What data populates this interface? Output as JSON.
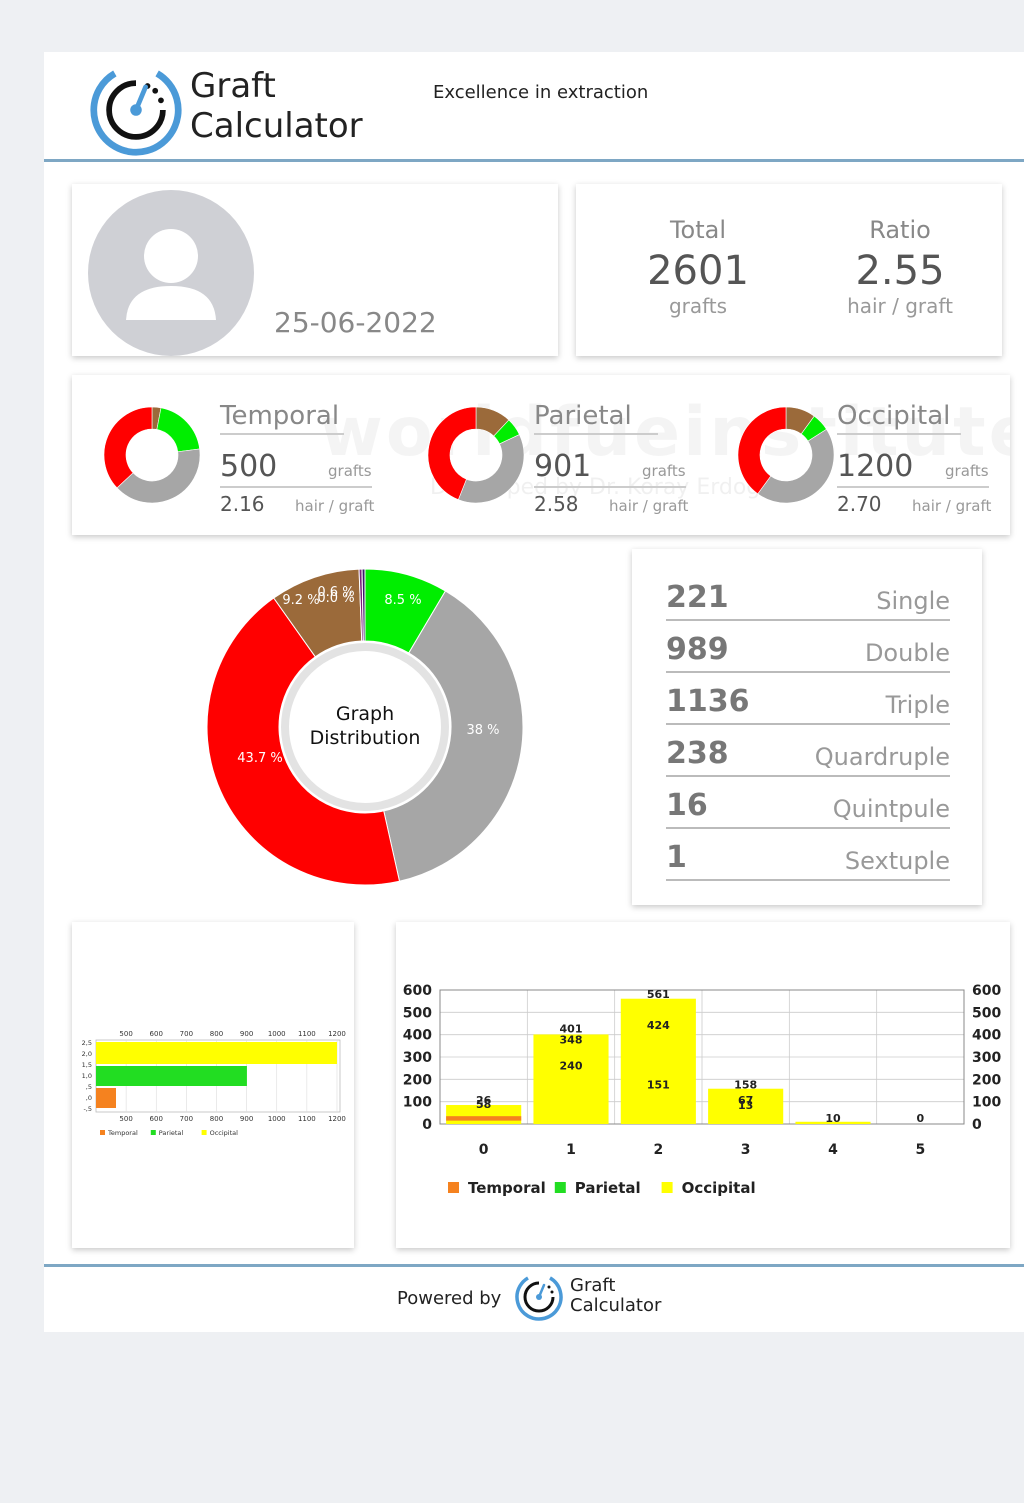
{
  "header": {
    "brand_line1": "Graft",
    "brand_line2": "Calculator",
    "tagline": "Excellence in extraction"
  },
  "watermark": {
    "text": "worldfueinstitute",
    "sub": "Developed by Dr. Koray Erdogan"
  },
  "patient": {
    "date": "25-06-2022"
  },
  "totals": {
    "total_label": "Total",
    "total_value": "2601",
    "total_unit": "grafts",
    "ratio_label": "Ratio",
    "ratio_value": "2.55",
    "ratio_unit": "hair / graft"
  },
  "regions": [
    {
      "name": "Temporal",
      "grafts": "500",
      "grafts_unit": "grafts",
      "ratio": "2.16",
      "ratio_unit": "hair / graft",
      "slices": [
        0.03,
        0.2,
        0.4,
        0.37
      ]
    },
    {
      "name": "Parietal",
      "grafts": "901",
      "grafts_unit": "grafts",
      "ratio": "2.58",
      "ratio_unit": "hair / graft",
      "slices": [
        0.12,
        0.06,
        0.38,
        0.44
      ]
    },
    {
      "name": "Occipital",
      "grafts": "1200",
      "grafts_unit": "grafts",
      "ratio": "2.70",
      "ratio_unit": "hair / graft",
      "slices": [
        0.1,
        0.06,
        0.44,
        0.4
      ]
    }
  ],
  "distribution": {
    "center_line1": "Graph",
    "center_line2": "Distribution",
    "labels": [
      "9.2 %",
      "0.6 %",
      "0.0 %",
      "8.5 %",
      "38 %",
      "43.7 %"
    ]
  },
  "graft_types": [
    {
      "count": "221",
      "name": "Single"
    },
    {
      "count": "989",
      "name": "Double"
    },
    {
      "count": "1136",
      "name": "Triple"
    },
    {
      "count": "238",
      "name": "Quardruple"
    },
    {
      "count": "16",
      "name": "Quintpule"
    },
    {
      "count": "1",
      "name": "Sextuple"
    }
  ],
  "colors": {
    "single": "#00ee00",
    "double": "#a6a6a6",
    "triple": "#ff0000",
    "quadruple": "#9b6a3a",
    "quintuple": "#7a1f7a",
    "temporal": "#f5821f",
    "parietal": "#22dd22",
    "occipital": "#ffff00"
  },
  "chart_data": [
    {
      "type": "bar",
      "orientation": "horizontal",
      "categories": [
        "Temporal",
        "Parietal",
        "Occipital"
      ],
      "values": [
        500,
        901,
        1200
      ],
      "x_ticks": [
        "500",
        "600",
        "700",
        "800",
        "900",
        "1000",
        "1100",
        "1200"
      ],
      "y_ticks": [
        "2,5",
        "2,0",
        "1,5",
        "1,0",
        ",5",
        ",0",
        "-,5"
      ],
      "legend": [
        "Temporal",
        "Parietal",
        "Occipital"
      ]
    },
    {
      "type": "bar",
      "categories": [
        "0",
        "1",
        "2",
        "3",
        "4",
        "5"
      ],
      "y_ticks": [
        "600",
        "500",
        "400",
        "300",
        "200",
        "100",
        "0"
      ],
      "ylim": [
        0,
        600
      ],
      "series": [
        {
          "name": "Temporal",
          "values": [
            35,
            0,
            0,
            0,
            0,
            0
          ]
        },
        {
          "name": "Parietal",
          "values": [
            0,
            0,
            0,
            0,
            0,
            0
          ]
        },
        {
          "name": "Occipital",
          "values": [
            85,
            401,
            561,
            158,
            10,
            0
          ]
        }
      ],
      "data_labels": [
        {
          "x": "0",
          "texts": [
            "26",
            "58"
          ]
        },
        {
          "x": "1",
          "texts": [
            "401",
            "348",
            "240"
          ]
        },
        {
          "x": "2",
          "texts": [
            "561",
            "424",
            "151"
          ]
        },
        {
          "x": "3",
          "texts": [
            "158",
            "67",
            "13"
          ]
        },
        {
          "x": "4",
          "texts": [
            "10"
          ]
        },
        {
          "x": "5",
          "texts": [
            "0"
          ]
        }
      ],
      "legend": [
        "Temporal",
        "Parietal",
        "Occipital"
      ]
    }
  ],
  "footer": {
    "powered_by": "Powered by",
    "brand_line1": "Graft",
    "brand_line2": "Calculator"
  }
}
